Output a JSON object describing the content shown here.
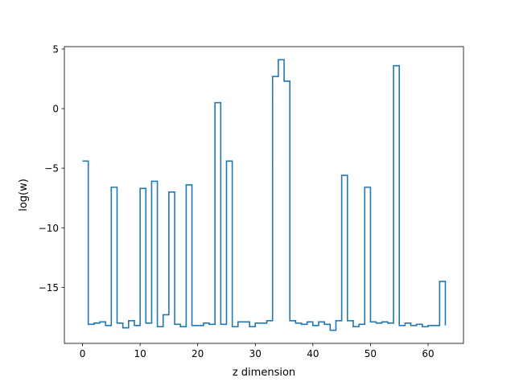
{
  "chart_data": {
    "type": "line",
    "drawstyle": "steps-post",
    "title": "",
    "xlabel": "z dimension",
    "ylabel": "log(w)",
    "xlim": [
      -3.15,
      66.15
    ],
    "ylim": [
      -19.7,
      5.2
    ],
    "grid": false,
    "x_ticks": [
      0,
      10,
      20,
      30,
      40,
      50,
      60
    ],
    "x_tick_labels": [
      "0",
      "10",
      "20",
      "30",
      "40",
      "50",
      "60"
    ],
    "y_ticks": [
      5,
      0,
      -5,
      -10,
      -15
    ],
    "y_tick_labels": [
      "5",
      "0",
      "−5",
      "−10",
      "−15"
    ],
    "series": [
      {
        "color": "#1f77b4",
        "x": [
          0,
          1,
          2,
          3,
          4,
          5,
          6,
          7,
          8,
          9,
          10,
          11,
          12,
          13,
          14,
          15,
          16,
          17,
          18,
          19,
          20,
          21,
          22,
          23,
          24,
          25,
          26,
          27,
          28,
          29,
          30,
          31,
          32,
          33,
          34,
          35,
          36,
          37,
          38,
          39,
          40,
          41,
          42,
          43,
          44,
          45,
          46,
          47,
          48,
          49,
          50,
          51,
          52,
          53,
          54,
          55,
          56,
          57,
          58,
          59,
          60,
          61,
          62,
          63
        ],
        "values": [
          -4.4,
          -18.1,
          -18.0,
          -17.9,
          -18.2,
          -6.6,
          -18.0,
          -18.4,
          -17.8,
          -18.2,
          -6.7,
          -18.0,
          -6.1,
          -18.3,
          -17.3,
          -7.0,
          -18.1,
          -18.3,
          -6.4,
          -18.2,
          -18.2,
          -18.0,
          -18.1,
          0.5,
          -18.1,
          -4.4,
          -18.3,
          -17.9,
          -17.9,
          -18.3,
          -18.0,
          -18.0,
          -17.8,
          2.7,
          4.1,
          2.3,
          -17.8,
          -18.0,
          -18.1,
          -17.9,
          -18.2,
          -17.9,
          -18.1,
          -18.6,
          -17.8,
          -5.6,
          -17.8,
          -18.3,
          -18.1,
          -6.6,
          -17.9,
          -18.0,
          -17.9,
          -18.0,
          3.6,
          -18.2,
          -18.0,
          -18.2,
          -18.1,
          -18.3,
          -18.2,
          -18.2,
          -14.5,
          -18.2
        ]
      }
    ]
  }
}
